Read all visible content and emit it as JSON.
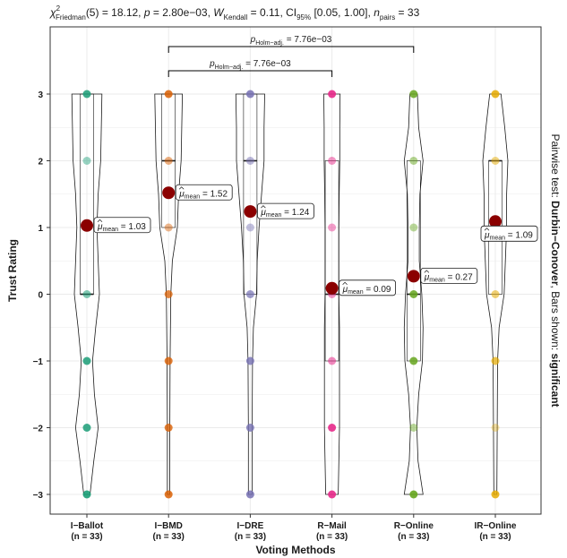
{
  "chart_data": {
    "type": "violin",
    "subtitle": {
      "chi": "χ",
      "chi_sup": "2",
      "chi_sub": "Friedman",
      "stat": "(5) = 18.12, ",
      "p_label": "p",
      "p_value": " = 2.80e−03, ",
      "w_label": "W",
      "w_sub": "Kendall",
      "w_value": " = 0.11, CI",
      "ci_sub": "95%",
      "ci_value": " [0.05, 1.00], ",
      "n_label": "n",
      "n_sub": "pairs",
      "n_value": " = 33"
    },
    "xlabel": "Voting Methods",
    "ylabel": "Trust Rating",
    "right_caption": {
      "prefix": "Pairwise test: ",
      "test": "Durbin−Conover",
      "middle": ", Bars shown: ",
      "shown": "significant"
    },
    "ylim": [
      -3,
      3
    ],
    "yticks": [
      "−3",
      "−2",
      "−1",
      "0",
      "1",
      "2",
      "3"
    ],
    "categories": [
      "I−Ballot",
      "I−BMD",
      "I−DRE",
      "R−Mail",
      "R−Online",
      "IR−Online"
    ],
    "n_labels": [
      "(n = 33)",
      "(n = 33)",
      "(n = 33)",
      "(n = 33)",
      "(n = 33)",
      "(n = 33)"
    ],
    "colors": [
      "#1B9E77",
      "#D95F02",
      "#7570B3",
      "#E7298A",
      "#66A61E",
      "#E6AB02"
    ],
    "mean_color": "#8B0000",
    "groups": [
      {
        "category": "I−Ballot",
        "points": [
          -3,
          -2,
          -1,
          0,
          2,
          3
        ],
        "alphas": [
          0.9,
          0.85,
          0.85,
          0.55,
          0.45,
          0.85
        ],
        "box": {
          "q1": 0,
          "median": 0,
          "q3": 3
        },
        "mean": 1.03,
        "mean_label": "= 1.03",
        "violin": [
          [
            -3,
            0.25
          ],
          [
            -2.5,
            0.55
          ],
          [
            -2,
            0.9
          ],
          [
            -1.5,
            0.6
          ],
          [
            -1,
            0.45
          ],
          [
            -0.5,
            0.7
          ],
          [
            0,
            1.0
          ],
          [
            0.5,
            0.9
          ],
          [
            1,
            0.8
          ],
          [
            1.5,
            0.9
          ],
          [
            2,
            1.1
          ],
          [
            2.5,
            1.15
          ],
          [
            3,
            1.2
          ]
        ]
      },
      {
        "category": "I−BMD",
        "points": [
          -3,
          -2,
          -1,
          0,
          1,
          2,
          3
        ],
        "alphas": [
          0.85,
          0.8,
          0.8,
          0.75,
          0.45,
          0.5,
          0.85
        ],
        "box": {
          "q1": 1,
          "median": 2,
          "q3": 3
        },
        "mean": 1.52,
        "mean_label": "= 1.52",
        "violin": [
          [
            -3,
            0.1
          ],
          [
            -2,
            0.1
          ],
          [
            -1,
            0.12
          ],
          [
            0,
            0.18
          ],
          [
            0.5,
            0.3
          ],
          [
            1,
            0.7
          ],
          [
            1.5,
            0.8
          ],
          [
            2,
            1.0
          ],
          [
            2.5,
            1.05
          ],
          [
            3,
            1.1
          ]
        ]
      },
      {
        "category": "I−DRE",
        "points": [
          -3,
          -2,
          -1,
          0,
          1,
          2,
          3
        ],
        "alphas": [
          0.85,
          0.8,
          0.8,
          0.7,
          0.45,
          0.5,
          0.85
        ],
        "box": {
          "q1": 0,
          "median": 2,
          "q3": 3
        },
        "mean": 1.24,
        "mean_label": "= 1.24",
        "violin": [
          [
            -3,
            0.15
          ],
          [
            -2,
            0.15
          ],
          [
            -1,
            0.18
          ],
          [
            -0.5,
            0.25
          ],
          [
            0,
            0.5
          ],
          [
            0.5,
            0.55
          ],
          [
            1,
            0.7
          ],
          [
            1.5,
            0.9
          ],
          [
            2,
            1.1
          ],
          [
            2.5,
            1.1
          ],
          [
            3,
            1.15
          ]
        ]
      },
      {
        "category": "R−Mail",
        "points": [
          -3,
          -2,
          -1,
          0,
          1,
          2,
          3
        ],
        "alphas": [
          0.9,
          0.9,
          0.55,
          0.5,
          0.45,
          0.5,
          0.9
        ],
        "box": {
          "q1": -1,
          "median": 0,
          "q3": 2
        },
        "mean": 0.09,
        "mean_label": "= 0.09",
        "violin": [
          [
            -3,
            0.5
          ],
          [
            -2.5,
            0.55
          ],
          [
            -2,
            0.6
          ],
          [
            -1.5,
            0.6
          ],
          [
            -1,
            0.6
          ],
          [
            -0.5,
            0.6
          ],
          [
            0,
            0.55
          ],
          [
            0.5,
            0.55
          ],
          [
            1,
            0.55
          ],
          [
            1.5,
            0.58
          ],
          [
            2,
            0.62
          ],
          [
            2.5,
            0.62
          ],
          [
            3,
            0.65
          ]
        ]
      },
      {
        "category": "R−Online",
        "points": [
          -3,
          -2,
          -1,
          0,
          1,
          2,
          3
        ],
        "alphas": [
          0.9,
          0.45,
          0.85,
          0.85,
          0.45,
          0.5,
          0.85
        ],
        "box": {
          "q1": -1,
          "median": 0,
          "q3": 2
        },
        "mean": 0.27,
        "mean_label": "= 0.27",
        "violin": [
          [
            -3,
            0.75
          ],
          [
            -2.5,
            0.35
          ],
          [
            -2,
            0.25
          ],
          [
            -1.5,
            0.4
          ],
          [
            -1,
            0.7
          ],
          [
            -0.5,
            0.75
          ],
          [
            0,
            0.65
          ],
          [
            0.5,
            0.45
          ],
          [
            1,
            0.45
          ],
          [
            1.5,
            0.5
          ],
          [
            2,
            0.75
          ],
          [
            2.5,
            0.4
          ],
          [
            3,
            0.3
          ]
        ]
      },
      {
        "category": "IR−Online",
        "points": [
          -3,
          -2,
          -1,
          0,
          2,
          3
        ],
        "alphas": [
          0.85,
          0.35,
          0.7,
          0.55,
          0.5,
          0.85
        ],
        "box": {
          "q1": 0,
          "median": 2,
          "q3": 2
        },
        "mean": 1.09,
        "mean_label": "= 1.09",
        "violin": [
          [
            -3,
            0.12
          ],
          [
            -2,
            0.15
          ],
          [
            -1,
            0.18
          ],
          [
            -0.5,
            0.3
          ],
          [
            0,
            0.7
          ],
          [
            0.5,
            0.8
          ],
          [
            1,
            0.9
          ],
          [
            1.5,
            0.9
          ],
          [
            2,
            1.0
          ],
          [
            2.5,
            0.75
          ],
          [
            3,
            0.45
          ]
        ]
      }
    ],
    "mean_symbol": "μ",
    "mean_sub": "mean",
    "comparisons": [
      {
        "from": "I−BMD",
        "to": "R−Online",
        "label_p": "p",
        "label_sub": "Holm−adj.",
        "label_value": " = 7.76e−03"
      },
      {
        "from": "I−BMD",
        "to": "R−Mail",
        "label_p": "p",
        "label_sub": "Holm−adj.",
        "label_value": " = 7.76e−03"
      }
    ],
    "grid": true
  }
}
